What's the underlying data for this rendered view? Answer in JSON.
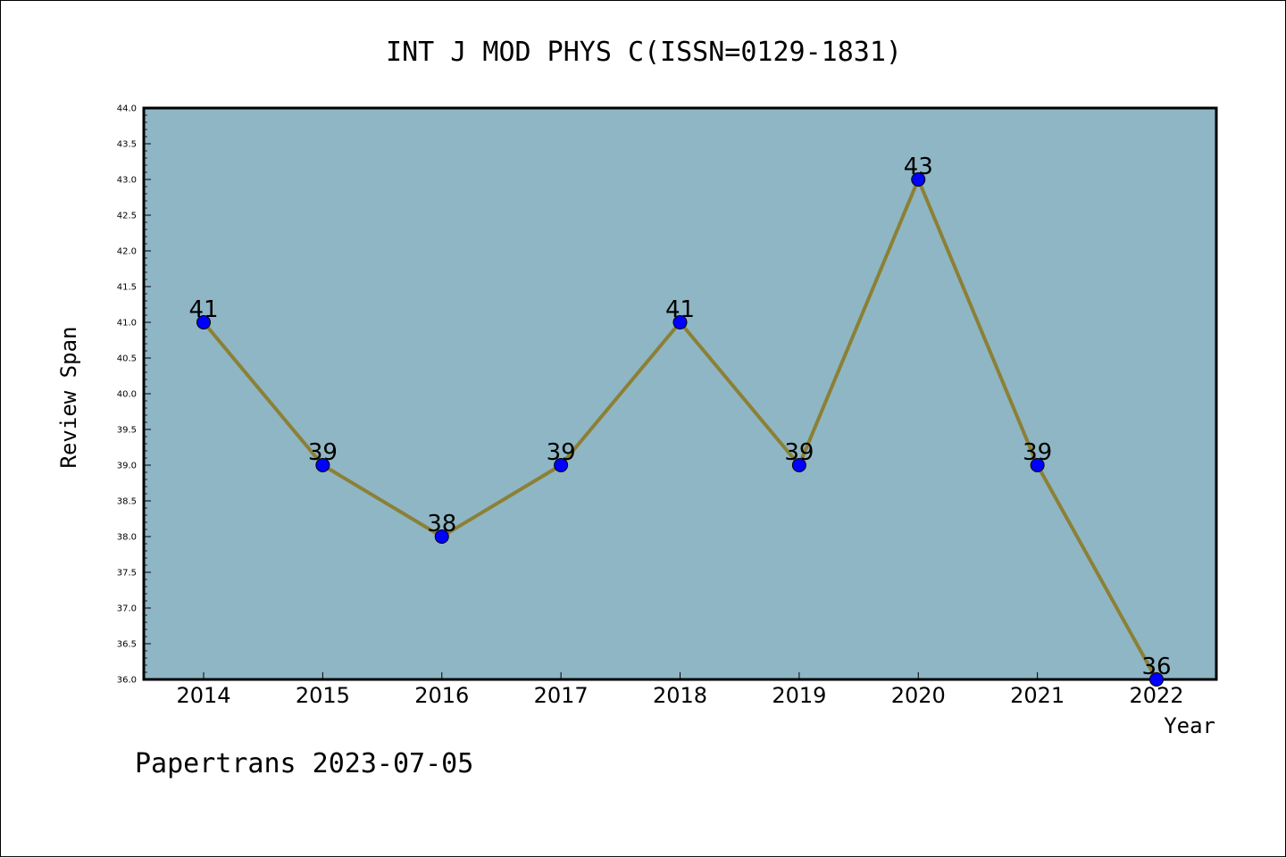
{
  "chart_data": {
    "type": "line",
    "title": "INT J MOD PHYS C(ISSN=0129-1831)",
    "xlabel": "Year",
    "ylabel": "Review Span",
    "categories": [
      "2014",
      "2015",
      "2016",
      "2017",
      "2018",
      "2019",
      "2020",
      "2021",
      "2022"
    ],
    "values": [
      41,
      39,
      38,
      39,
      41,
      39,
      43,
      39,
      36
    ],
    "data_labels": [
      "41",
      "39",
      "38",
      "39",
      "41",
      "39",
      "43",
      "39",
      "36"
    ],
    "ylim": [
      36.0,
      44.0
    ],
    "y_ticks": [
      "36.0",
      "36.5",
      "37.0",
      "37.5",
      "38.0",
      "38.5",
      "39.0",
      "39.5",
      "40.0",
      "40.5",
      "41.0",
      "41.5",
      "42.0",
      "42.5",
      "43.0",
      "43.5",
      "44.0"
    ],
    "grid": false,
    "legend": "none",
    "colors": {
      "plot_background": "#8fb6c4",
      "line": "#8b8036",
      "marker": "#0000ff"
    }
  },
  "footer": {
    "watermark": "Papertrans 2023-07-05"
  }
}
